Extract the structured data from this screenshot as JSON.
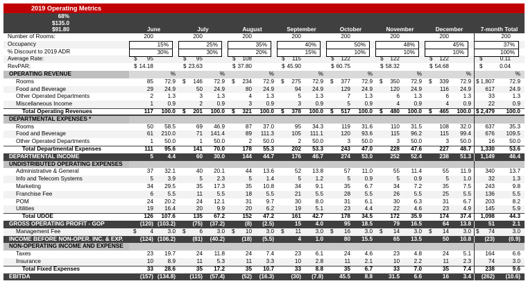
{
  "title": "2019 Operating Metrics",
  "summary": {
    "occupancy": "68%",
    "adr": "$135.0",
    "revpar": "$91.80"
  },
  "columns": [
    "June",
    "July",
    "August",
    "September",
    "October",
    "November",
    "December",
    "7-month Total"
  ],
  "pct_symbol": "%",
  "colors": {
    "banner_red": "#C00000",
    "header_dark": "#404040",
    "section_gray": "#BFBFBF",
    "pct_band_gray": "#D9D9D9",
    "alt_row": "#F2F2F2"
  },
  "rows": [
    {
      "kind": "info",
      "label": "Number of Rooms:",
      "cells": [
        {
          "v": "200"
        },
        {
          "v": "200"
        },
        {
          "v": "200"
        },
        {
          "v": "200"
        },
        {
          "v": "200"
        },
        {
          "v": "200"
        },
        {
          "v": "200"
        },
        {
          "v": "200"
        }
      ]
    },
    {
      "kind": "info",
      "label": "Occupancy",
      "boxed": true,
      "alt": true,
      "cells": [
        {
          "v": "15%"
        },
        {
          "v": "25%"
        },
        {
          "v": "35%"
        },
        {
          "v": "40%"
        },
        {
          "v": "50%"
        },
        {
          "v": "48%"
        },
        {
          "v": "45%"
        },
        {
          "v": "37%"
        }
      ]
    },
    {
      "kind": "info",
      "label": "% Discount to 2019 ADR",
      "boxed": true,
      "cells": [
        {
          "v": "30%"
        },
        {
          "v": "30%"
        },
        {
          "v": "20%"
        },
        {
          "v": "15%"
        },
        {
          "v": "10%"
        },
        {
          "v": "10%"
        },
        {
          "v": "10%"
        },
        {
          "v": "100%"
        }
      ]
    },
    {
      "kind": "info",
      "label": "Average Rate:",
      "alt": true,
      "cells": [
        {
          "d": "$",
          "v": "95"
        },
        {
          "d": "$",
          "v": "95"
        },
        {
          "d": "$",
          "v": "108"
        },
        {
          "d": "$",
          "v": "115"
        },
        {
          "d": "$",
          "v": "122"
        },
        {
          "d": "$",
          "v": "122"
        },
        {
          "d": "$",
          "v": "122"
        },
        {
          "d": "$",
          "v": "0.11"
        }
      ]
    },
    {
      "kind": "info",
      "label": "RevPAR:",
      "cells": [
        {
          "d": "$",
          "v": "14.18"
        },
        {
          "d": "$",
          "v": "23.63"
        },
        {
          "d": "$",
          "v": "37.80"
        },
        {
          "d": "$",
          "v": "45.90"
        },
        {
          "d": "$",
          "v": "60.75"
        },
        {
          "d": "$",
          "v": "58.32"
        },
        {
          "d": "$",
          "v": "54.68"
        },
        {
          "d": "$",
          "v": "0.04"
        }
      ]
    },
    {
      "kind": "section-pct",
      "label": "OPERATING REVENUE",
      "cells": []
    },
    {
      "kind": "data",
      "label": "Rooms",
      "cells": [
        {
          "v": "85",
          "p": "72.9"
        },
        {
          "d": "$",
          "v": "146",
          "p": "72.9"
        },
        {
          "d": "$",
          "v": "234",
          "p": "72.9"
        },
        {
          "d": "$",
          "v": "275",
          "p": "72.9"
        },
        {
          "d": "$",
          "v": "377",
          "p": "72.9"
        },
        {
          "d": "$",
          "v": "350",
          "p": "72.9"
        },
        {
          "d": "$",
          "v": "339",
          "p": "72.9"
        },
        {
          "d": "$",
          "v": "1,807",
          "p": "72.9"
        }
      ]
    },
    {
      "kind": "data",
      "label": "Food and Beverage",
      "alt": true,
      "cells": [
        {
          "v": "29",
          "p": "24.9"
        },
        {
          "v": "50",
          "p": "24.9"
        },
        {
          "v": "80",
          "p": "24.9"
        },
        {
          "v": "94",
          "p": "24.9"
        },
        {
          "v": "129",
          "p": "24.9"
        },
        {
          "v": "120",
          "p": "24.9"
        },
        {
          "v": "116",
          "p": "24.9"
        },
        {
          "v": "617",
          "p": "24.9"
        }
      ]
    },
    {
      "kind": "data",
      "label": "Other Operated Departments",
      "cells": [
        {
          "v": "2",
          "p": "1.3"
        },
        {
          "v": "3",
          "p": "1.3"
        },
        {
          "v": "4",
          "p": "1.3"
        },
        {
          "v": "5",
          "p": "1.3"
        },
        {
          "v": "7",
          "p": "1.3"
        },
        {
          "v": "6",
          "p": "1.3"
        },
        {
          "v": "6",
          "p": "1.3"
        },
        {
          "v": "33",
          "p": "1.3"
        }
      ]
    },
    {
      "kind": "data",
      "label": "Miscellaneous Income",
      "alt": true,
      "cells": [
        {
          "v": "1",
          "p": "0.9"
        },
        {
          "v": "2",
          "p": "0.9"
        },
        {
          "v": "3",
          "p": "0.9"
        },
        {
          "v": "3",
          "p": "0.9"
        },
        {
          "v": "5",
          "p": "0.9"
        },
        {
          "v": "4",
          "p": "0.9"
        },
        {
          "v": "4",
          "p": "0.9"
        },
        {
          "v": "22",
          "p": "0.9"
        }
      ]
    },
    {
      "kind": "total",
      "label": "Total Operating Revenues",
      "thick": true,
      "cells": [
        {
          "v": "117",
          "p": "100.0"
        },
        {
          "d": "$",
          "v": "201",
          "p": "100.0"
        },
        {
          "d": "$",
          "v": "321",
          "p": "100.0"
        },
        {
          "d": "$",
          "v": "378",
          "p": "100.0"
        },
        {
          "d": "$",
          "v": "517",
          "p": "100.0"
        },
        {
          "d": "$",
          "v": "480",
          "p": "100.0"
        },
        {
          "d": "$",
          "v": "465",
          "p": "100.0"
        },
        {
          "d": "$",
          "v": "2,479",
          "p": "100.0"
        }
      ]
    },
    {
      "kind": "section",
      "label": "DEPARTMENTAL EXPENSES *",
      "cells": []
    },
    {
      "kind": "data",
      "label": "Rooms",
      "cells": [
        {
          "v": "50",
          "p": "58.5"
        },
        {
          "v": "69",
          "p": "46.9"
        },
        {
          "v": "87",
          "p": "37.0"
        },
        {
          "v": "95",
          "p": "34.3"
        },
        {
          "v": "119",
          "p": "31.6"
        },
        {
          "v": "110",
          "p": "31.5"
        },
        {
          "v": "108",
          "p": "32.0"
        },
        {
          "v": "637",
          "p": "35.3"
        }
      ]
    },
    {
      "kind": "data",
      "label": "Food and Beverage",
      "alt": true,
      "cells": [
        {
          "v": "61",
          "p": "210.0"
        },
        {
          "v": "71",
          "p": "141.4"
        },
        {
          "v": "89",
          "p": "111.3"
        },
        {
          "v": "105",
          "p": "111.1"
        },
        {
          "v": "120",
          "p": "93.6"
        },
        {
          "v": "115",
          "p": "96.2"
        },
        {
          "v": "115",
          "p": "99.4"
        },
        {
          "v": "676",
          "p": "109.5"
        }
      ]
    },
    {
      "kind": "data",
      "label": "Other Operated Departments",
      "cells": [
        {
          "v": "1",
          "p": "50.0"
        },
        {
          "v": "1",
          "p": "50.0"
        },
        {
          "v": "2",
          "p": "50.0"
        },
        {
          "v": "2",
          "p": "50.0"
        },
        {
          "v": "3",
          "p": "50.0"
        },
        {
          "v": "3",
          "p": "50.0"
        },
        {
          "v": "3",
          "p": "50.0"
        },
        {
          "v": "16",
          "p": "50.0"
        }
      ]
    },
    {
      "kind": "total",
      "label": "Total Departmental Expenses",
      "cells": [
        {
          "v": "111",
          "p": "95.6"
        },
        {
          "v": "141",
          "p": "70.0"
        },
        {
          "v": "178",
          "p": "55.3"
        },
        {
          "v": "202",
          "p": "53.3"
        },
        {
          "v": "243",
          "p": "47.0"
        },
        {
          "v": "228",
          "p": "47.6"
        },
        {
          "v": "227",
          "p": "48.7"
        },
        {
          "v": "1,330",
          "p": "53.6"
        }
      ]
    },
    {
      "kind": "dark",
      "label": "DEPARTMENTAL INCOME",
      "cells": [
        {
          "v": "5",
          "p": "4.4"
        },
        {
          "v": "60",
          "p": "30.0"
        },
        {
          "v": "144",
          "p": "44.7"
        },
        {
          "v": "176",
          "p": "46.7"
        },
        {
          "v": "274",
          "p": "53.0"
        },
        {
          "v": "252",
          "p": "52.4"
        },
        {
          "v": "238",
          "p": "51.3"
        },
        {
          "v": "1,149",
          "p": "46.4"
        }
      ]
    },
    {
      "kind": "section",
      "label": "UNDISTRIBUTED OPERATING EXPENSES",
      "cells": []
    },
    {
      "kind": "data",
      "label": "Administrative & General",
      "cells": [
        {
          "v": "37",
          "p": "32.1"
        },
        {
          "v": "40",
          "p": "20.1"
        },
        {
          "v": "44",
          "p": "13.6"
        },
        {
          "v": "52",
          "p": "13.8"
        },
        {
          "v": "57",
          "p": "11.0"
        },
        {
          "v": "55",
          "p": "11.4"
        },
        {
          "v": "55",
          "p": "11.9"
        },
        {
          "v": "340",
          "p": "13.7"
        }
      ]
    },
    {
      "kind": "data",
      "label": "Info and Telecom Systems",
      "alt": true,
      "cells": [
        {
          "v": "5",
          "p": "3.9"
        },
        {
          "v": "5",
          "p": "2.3"
        },
        {
          "v": "5",
          "p": "1.4"
        },
        {
          "v": "5",
          "p": "1.2"
        },
        {
          "v": "5",
          "p": "0.9"
        },
        {
          "v": "5",
          "p": "0.9"
        },
        {
          "v": "5",
          "p": "1.0"
        },
        {
          "v": "32",
          "p": "1.3"
        }
      ]
    },
    {
      "kind": "data",
      "label": "Marketing",
      "cells": [
        {
          "v": "34",
          "p": "29.5"
        },
        {
          "v": "35",
          "p": "17.3"
        },
        {
          "v": "35",
          "p": "10.8"
        },
        {
          "v": "34",
          "p": "9.1"
        },
        {
          "v": "35",
          "p": "6.7"
        },
        {
          "v": "34",
          "p": "7.2"
        },
        {
          "v": "35",
          "p": "7.5"
        },
        {
          "v": "243",
          "p": "9.8"
        }
      ]
    },
    {
      "kind": "data",
      "label": "Franchise Fee",
      "alt": true,
      "cells": [
        {
          "v": "6",
          "p": "5.5"
        },
        {
          "v": "11",
          "p": "5.5"
        },
        {
          "v": "18",
          "p": "5.5"
        },
        {
          "v": "21",
          "p": "5.5"
        },
        {
          "v": "28",
          "p": "5.5"
        },
        {
          "v": "26",
          "p": "5.5"
        },
        {
          "v": "25",
          "p": "5.5"
        },
        {
          "v": "136",
          "p": "5.5"
        }
      ]
    },
    {
      "kind": "data",
      "label": "POM",
      "cells": [
        {
          "v": "24",
          "p": "20.2"
        },
        {
          "v": "24",
          "p": "12.1"
        },
        {
          "v": "31",
          "p": "9.7"
        },
        {
          "v": "30",
          "p": "8.0"
        },
        {
          "v": "31",
          "p": "6.1"
        },
        {
          "v": "30",
          "p": "6.3"
        },
        {
          "v": "31",
          "p": "6.7"
        },
        {
          "v": "203",
          "p": "8.2"
        }
      ]
    },
    {
      "kind": "data",
      "label": "Utilities",
      "alt": true,
      "cells": [
        {
          "v": "19",
          "p": "16.4"
        },
        {
          "v": "20",
          "p": "9.9"
        },
        {
          "v": "20",
          "p": "6.2"
        },
        {
          "v": "19",
          "p": "5.1"
        },
        {
          "v": "23",
          "p": "4.4"
        },
        {
          "v": "22",
          "p": "4.6"
        },
        {
          "v": "23",
          "p": "4.9"
        },
        {
          "v": "145",
          "p": "5.9"
        }
      ]
    },
    {
      "kind": "total",
      "label": "Total UDOE",
      "cells": [
        {
          "v": "126",
          "p": "107.6"
        },
        {
          "v": "135",
          "p": "67.2"
        },
        {
          "v": "152",
          "p": "47.2"
        },
        {
          "v": "161",
          "p": "42.7"
        },
        {
          "v": "178",
          "p": "34.5"
        },
        {
          "v": "172",
          "p": "35.9"
        },
        {
          "v": "174",
          "p": "37.4"
        },
        {
          "v": "1,098",
          "p": "44.3"
        }
      ]
    },
    {
      "kind": "dark",
      "label": "GROSS OPERATING PROFIT - GOP",
      "cells": [
        {
          "v": "(120)",
          "p": "(103.2)"
        },
        {
          "v": "(75)",
          "p": "(37.2)"
        },
        {
          "v": "(8)",
          "p": "(2.5)"
        },
        {
          "v": "15",
          "p": "4.0"
        },
        {
          "v": "95",
          "p": "18.5"
        },
        {
          "v": "79",
          "p": "16.5"
        },
        {
          "v": "64",
          "p": "13.8"
        },
        {
          "v": "51",
          "p": "2.1"
        }
      ]
    },
    {
      "kind": "data",
      "label": "Management Fee",
      "alt": true,
      "cells": [
        {
          "d": "$",
          "v": "4",
          "p": "3.0"
        },
        {
          "d": "$",
          "v": "6",
          "p": "3.0"
        },
        {
          "d": "$",
          "v": "10",
          "p": "3.0"
        },
        {
          "d": "$",
          "v": "11",
          "p": "3.0"
        },
        {
          "d": "$",
          "v": "16",
          "p": "3.0"
        },
        {
          "d": "$",
          "v": "14",
          "p": "3.0"
        },
        {
          "d": "$",
          "v": "14",
          "p": "3.0"
        },
        {
          "d": "$",
          "v": "74",
          "p": "3.0"
        }
      ]
    },
    {
      "kind": "dark",
      "label": "INCOME BEFORE NON-OPER. INC. & EXP.",
      "cells": [
        {
          "v": "(124)",
          "p": "(106.2)"
        },
        {
          "v": "(81)",
          "p": "(40.2)"
        },
        {
          "v": "(18)",
          "p": "(5.5)"
        },
        {
          "v": "4",
          "p": "1.0"
        },
        {
          "v": "80",
          "p": "15.5"
        },
        {
          "v": "65",
          "p": "13.5"
        },
        {
          "v": "50",
          "p": "10.8"
        },
        {
          "v": "(23)",
          "p": "(0.9)"
        }
      ]
    },
    {
      "kind": "section",
      "label": "NON-OPERATING INCOME AND EXPENSE",
      "cells": []
    },
    {
      "kind": "data",
      "label": "Taxes",
      "cells": [
        {
          "v": "23",
          "p": "19.7"
        },
        {
          "v": "24",
          "p": "11.8"
        },
        {
          "v": "24",
          "p": "7.4"
        },
        {
          "v": "23",
          "p": "6.1"
        },
        {
          "v": "24",
          "p": "4.6"
        },
        {
          "v": "23",
          "p": "4.8"
        },
        {
          "v": "24",
          "p": "5.1"
        },
        {
          "v": "164",
          "p": "6.6"
        }
      ]
    },
    {
      "kind": "data",
      "label": "Insurance",
      "alt": true,
      "cells": [
        {
          "v": "10",
          "p": "8.9"
        },
        {
          "v": "11",
          "p": "5.3"
        },
        {
          "v": "11",
          "p": "3.3"
        },
        {
          "v": "10",
          "p": "2.8"
        },
        {
          "v": "11",
          "p": "2.1"
        },
        {
          "v": "10",
          "p": "2.2"
        },
        {
          "v": "11",
          "p": "2.3"
        },
        {
          "v": "74",
          "p": "3.0"
        }
      ]
    },
    {
      "kind": "total",
      "label": "Total Fixed Expenses",
      "cells": [
        {
          "v": "33",
          "p": "28.6"
        },
        {
          "v": "35",
          "p": "17.2"
        },
        {
          "v": "35",
          "p": "10.7"
        },
        {
          "v": "33",
          "p": "8.8"
        },
        {
          "v": "35",
          "p": "6.7"
        },
        {
          "v": "33",
          "p": "7.0"
        },
        {
          "v": "35",
          "p": "7.4"
        },
        {
          "v": "238",
          "p": "9.6"
        }
      ]
    },
    {
      "kind": "dark",
      "label": "EBITDA",
      "cells": [
        {
          "v": "(157)",
          "p": "(134.8)"
        },
        {
          "v": "(115)",
          "p": "(57.4)"
        },
        {
          "v": "(52)",
          "p": "(16.3)"
        },
        {
          "v": "(30)",
          "p": "(7.8)"
        },
        {
          "v": "45.5",
          "p": "8.8"
        },
        {
          "v": "31.5",
          "p": "6.6"
        },
        {
          "v": "16",
          "p": "3.4"
        },
        {
          "v": "(262)",
          "p": "(10.6)"
        }
      ]
    }
  ]
}
